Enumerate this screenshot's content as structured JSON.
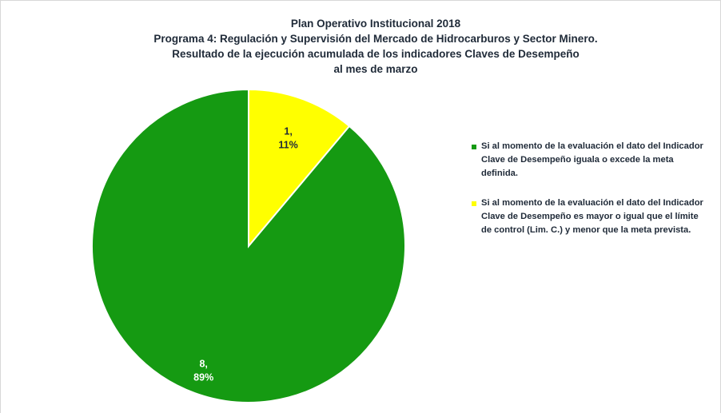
{
  "chart_data": {
    "type": "pie",
    "title_lines": [
      "Plan Operativo Institucional 2018",
      "Programa 4:  Regulación y Supervisión del Mercado de Hidrocarburos y Sector Minero.",
      "Resultado de la ejecución  acumulada de los indicadores Claves de Desempeño",
      "al mes de marzo"
    ],
    "slices": [
      {
        "value": 8,
        "label": "8,",
        "percent_label": "89%",
        "color": "#159a12",
        "label_color": "#ffffff",
        "legend": "Si al momento de la evaluación el dato del Indicador Clave de Desempeño iguala o excede la meta definida."
      },
      {
        "value": 1,
        "label": "1,",
        "percent_label": "11%",
        "color": "#ffff00",
        "label_color": "#1f2a38",
        "legend": "Si al momento de la evaluación el dato del Indicador Clave de Desempeño es mayor o igual que el límite de control (Lim. C.) y menor que la meta prevista."
      }
    ],
    "start_angle_deg": 0,
    "direction": "counterclockwise",
    "legend_position": "right"
  }
}
